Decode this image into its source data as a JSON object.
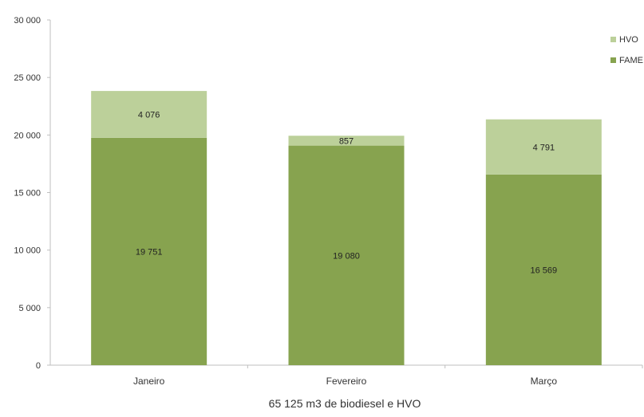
{
  "chart_data": {
    "type": "bar",
    "stacked": true,
    "categories": [
      "Janeiro",
      "Fevereiro",
      "Março"
    ],
    "series": [
      {
        "name": "FAME",
        "values": [
          19751,
          19080,
          16569
        ],
        "labels": [
          "19 751",
          "19 080",
          "16 569"
        ],
        "color": "#87a34f"
      },
      {
        "name": "HVO",
        "values": [
          4076,
          857,
          4791
        ],
        "labels": [
          "4 076",
          "857",
          "4 791"
        ],
        "color": "#bcd09a"
      }
    ],
    "ylim": [
      0,
      30000
    ],
    "yticks": [
      0,
      5000,
      10000,
      15000,
      20000,
      25000,
      30000
    ],
    "ytick_labels": [
      "0",
      "5 000",
      "10 000",
      "15 000",
      "20 000",
      "25 000",
      "30 000"
    ],
    "legend": {
      "position": "right",
      "order": [
        "HVO",
        "FAME"
      ]
    },
    "caption": "65 125  m3 de biodiesel e HVO",
    "grid": false,
    "title": "",
    "xlabel": "",
    "ylabel": ""
  }
}
